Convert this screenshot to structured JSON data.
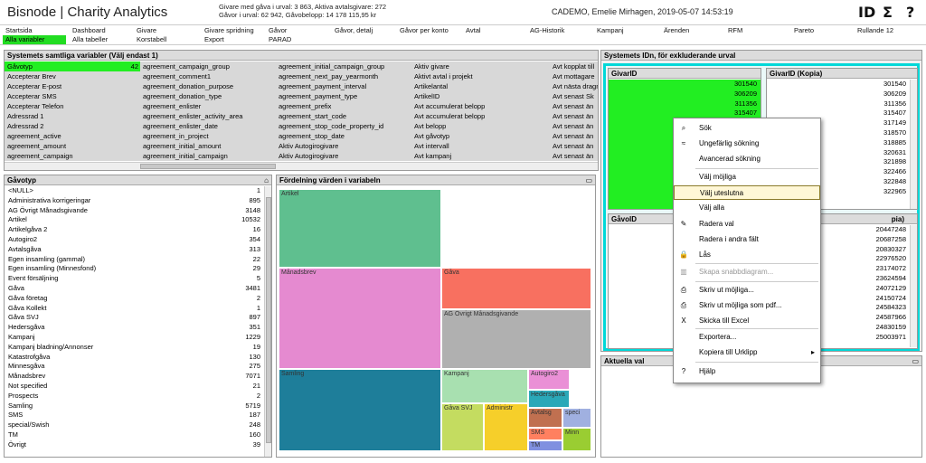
{
  "header": {
    "title": "Bisnode | Charity Analytics",
    "stats_line1": "Givare med gåva i urval: 3 863, Aktiva avtalsgivare: 272",
    "stats_line2": "Gåvor i urval: 62 942, Gåvobelopp: 14 178 115,95 kr",
    "user_datetime": "CADEMO, Emelie Mirhagen, 2019-05-07 14:53:19",
    "icons": [
      "id-icon",
      "sigma-icon",
      "help-icon"
    ],
    "icon_glyphs": [
      "ID",
      "Σ",
      "?"
    ]
  },
  "tabs_row1": [
    "Startsida",
    "Dashboard",
    "Givare",
    "Givare spridning",
    "Gåvor",
    "Gåvor, detalj",
    "Gåvor per konto",
    "Avtal",
    "AG-Historik",
    "Kampanj",
    "Ärenden",
    "RFM",
    "Pareto",
    "Rullande 12"
  ],
  "tabs_row2": [
    "Alla variabler",
    "Alla tabeller",
    "Korstabell",
    "Export",
    "PARAD"
  ],
  "active_tab": "Alla variabler",
  "variables_panel": {
    "title": "Systemets samtliga variabler (Välj endast 1)",
    "selected_count": "42",
    "columns": [
      [
        "Gåvotyp",
        "Accepterar Brev",
        "Accepterar E-post",
        "Accepterar SMS",
        "Accepterar Telefon",
        "Adressrad 1",
        "Adressrad 2",
        "agreement_active",
        "agreement_amount",
        "agreement_campaign"
      ],
      [
        "agreement_campaign_group",
        "agreement_comment1",
        "agreement_donation_purpose",
        "agreement_donation_type",
        "agreement_enlister",
        "agreement_enlister_activity_area",
        "agreement_enlister_date",
        "agreement_in_project",
        "agreement_initial_amount",
        "agreement_initial_campaign"
      ],
      [
        "agreement_initial_campaign_group",
        "agreement_next_pay_yearmonth",
        "agreement_payment_interval",
        "agreement_payment_type",
        "agreement_prefix",
        "agreement_start_code",
        "agreement_stop_code_property_id",
        "agreement_stop_date",
        "Aktiv Autogirogivare",
        "Aktiv Autogirogivare"
      ],
      [
        "Aktiv givare",
        "Aktivt avtal i projekt",
        "Artikelantal",
        "ArtikelID",
        "Avt accumulerat belopp",
        "Avt accumulerat belopp",
        "Avt belopp",
        "Avt gåvotyp",
        "Avt intervall",
        "Avt kampanj"
      ],
      [
        "Avt kopplat till",
        "Avt mottagare",
        "Avt nästa dragning",
        "Avt senast Sk",
        "Avt senast än",
        "Avt senast än",
        "Avt senast än",
        "Avt senast än",
        "Avt senast än",
        "Avt senast än"
      ]
    ]
  },
  "gavotyp_panel": {
    "title": "Gåvotyp",
    "rows": [
      {
        "label": "<NULL>",
        "count": "1"
      },
      {
        "label": "Administrativa korrigeringar",
        "count": "895"
      },
      {
        "label": "AG Övrigt Månadsgivande",
        "count": "3148"
      },
      {
        "label": "Artikel",
        "count": "10532"
      },
      {
        "label": "Artikelgåva 2",
        "count": "16"
      },
      {
        "label": "Autogiro2",
        "count": "354"
      },
      {
        "label": "Avtalsgåva",
        "count": "313"
      },
      {
        "label": "Egen insamling (gammal)",
        "count": "22"
      },
      {
        "label": "Egen insamling (Minnesfond)",
        "count": "29"
      },
      {
        "label": "Event försäljning",
        "count": "5"
      },
      {
        "label": "Gåva",
        "count": "3481"
      },
      {
        "label": "Gåva  företag",
        "count": "2"
      },
      {
        "label": "Gåva Kollekt",
        "count": "1"
      },
      {
        "label": "Gåva SVJ",
        "count": "897"
      },
      {
        "label": "Hedersgåva",
        "count": "351"
      },
      {
        "label": "Kampanj",
        "count": "1229"
      },
      {
        "label": "Kampanj bladning/Annonser",
        "count": "19"
      },
      {
        "label": "Katastrofgåva",
        "count": "130"
      },
      {
        "label": "Minnesgåva",
        "count": "275"
      },
      {
        "label": "Månadsbrev",
        "count": "7071"
      },
      {
        "label": "Not specified",
        "count": "21"
      },
      {
        "label": "Prospects",
        "count": "2"
      },
      {
        "label": "Samling",
        "count": "5719"
      },
      {
        "label": "SMS",
        "count": "187"
      },
      {
        "label": "special/Swish",
        "count": "248"
      },
      {
        "label": "TM",
        "count": "160"
      },
      {
        "label": "Övrigt",
        "count": "39"
      }
    ]
  },
  "treemap_panel": {
    "title": "Fördelning värden i variabeln",
    "blocks": [
      {
        "label": "Artikel",
        "color": "#5fbf8f"
      },
      {
        "label": "Månadsbrev",
        "color": "#e58ad0"
      },
      {
        "label": "Gåva",
        "color": "#f87060"
      },
      {
        "label": "AG Övrigt Månadsgivande",
        "color": "#b0b0b0"
      },
      {
        "label": "Samling",
        "color": "#1e7e9a"
      },
      {
        "label": "Kampanj",
        "color": "#a8e0b0"
      },
      {
        "label": "Gåva SVJ",
        "color": "#c4dc60"
      },
      {
        "label": "Administr",
        "color": "#f6cf2a"
      },
      {
        "label": "Autogiro2",
        "color": "#ea90d6"
      },
      {
        "label": "Hedersgåva",
        "color": "#2aa8b8"
      },
      {
        "label": "Avtalsg",
        "color": "#c07050"
      },
      {
        "label": "speci",
        "color": "#a0b0e0"
      },
      {
        "label": "SMS",
        "color": "#ff8060"
      },
      {
        "label": "TM",
        "color": "#8090e0"
      },
      {
        "label": "Minn",
        "color": "#9acd32"
      }
    ]
  },
  "id_panel": {
    "title": "Systemets IDn, för exkluderande urval",
    "givarid_title": "GivarID",
    "givarid_values": [
      "301540",
      "306209",
      "311356",
      "315407"
    ],
    "givarid_copy_title": "GivarID (Kopia)",
    "givarid_copy_values": [
      "301540",
      "306209",
      "311356",
      "315407",
      "317149",
      "318570",
      "318885",
      "320631",
      "321898",
      "322466",
      "322848",
      "322965"
    ],
    "gavoid_title": "GåvoID",
    "gavoid_copy_title": "pia)",
    "gavoid_copy_values": [
      "20447248",
      "20687258",
      "20830327",
      "22976520",
      "23174072",
      "23624594",
      "24072129",
      "24150724",
      "24584323",
      "24587966",
      "24830159",
      "25003971"
    ]
  },
  "aktuella_panel": {
    "title": "Aktuella val"
  },
  "context_menu": {
    "items": [
      {
        "label": "Sök",
        "icon": "search-icon",
        "glyph": "⌕"
      },
      {
        "label": "Ungefärlig sökning",
        "icon": "fuzzy-search-icon",
        "glyph": "≈"
      },
      {
        "label": "Avancerad sökning",
        "icon": "",
        "glyph": ""
      },
      {
        "label": "Välj möjliga",
        "icon": "",
        "glyph": ""
      },
      {
        "label": "Välj uteslutna",
        "icon": "",
        "glyph": ""
      },
      {
        "label": "Välj alla",
        "icon": "",
        "glyph": ""
      },
      {
        "label": "Radera val",
        "icon": "eraser-icon",
        "glyph": "✎"
      },
      {
        "label": "Radera i andra fält",
        "icon": "",
        "glyph": ""
      },
      {
        "label": "Lås",
        "icon": "lock-icon",
        "glyph": "🔒"
      },
      {
        "label": "Skapa snabbdiagram...",
        "icon": "chart-icon",
        "glyph": "▥"
      },
      {
        "label": "Skriv ut möjliga...",
        "icon": "printer-icon",
        "glyph": "⎙"
      },
      {
        "label": "Skriv ut möjliga som pdf...",
        "icon": "pdf-printer-icon",
        "glyph": "⎙"
      },
      {
        "label": "Skicka till Excel",
        "icon": "excel-icon",
        "glyph": "X"
      },
      {
        "label": "Exportera...",
        "icon": "",
        "glyph": ""
      },
      {
        "label": "Kopiera till Urklipp",
        "icon": "",
        "glyph": "",
        "submenu": "▸"
      },
      {
        "label": "Hjälp",
        "icon": "help-icon",
        "glyph": "?"
      }
    ],
    "highlighted": "Välj uteslutna",
    "disabled": "Skapa snabbdiagram..."
  },
  "colors": {
    "accent_green": "#22ee22",
    "id_panel_border": "#00d8d8",
    "panel_title_bg": "#dcdcdc"
  }
}
